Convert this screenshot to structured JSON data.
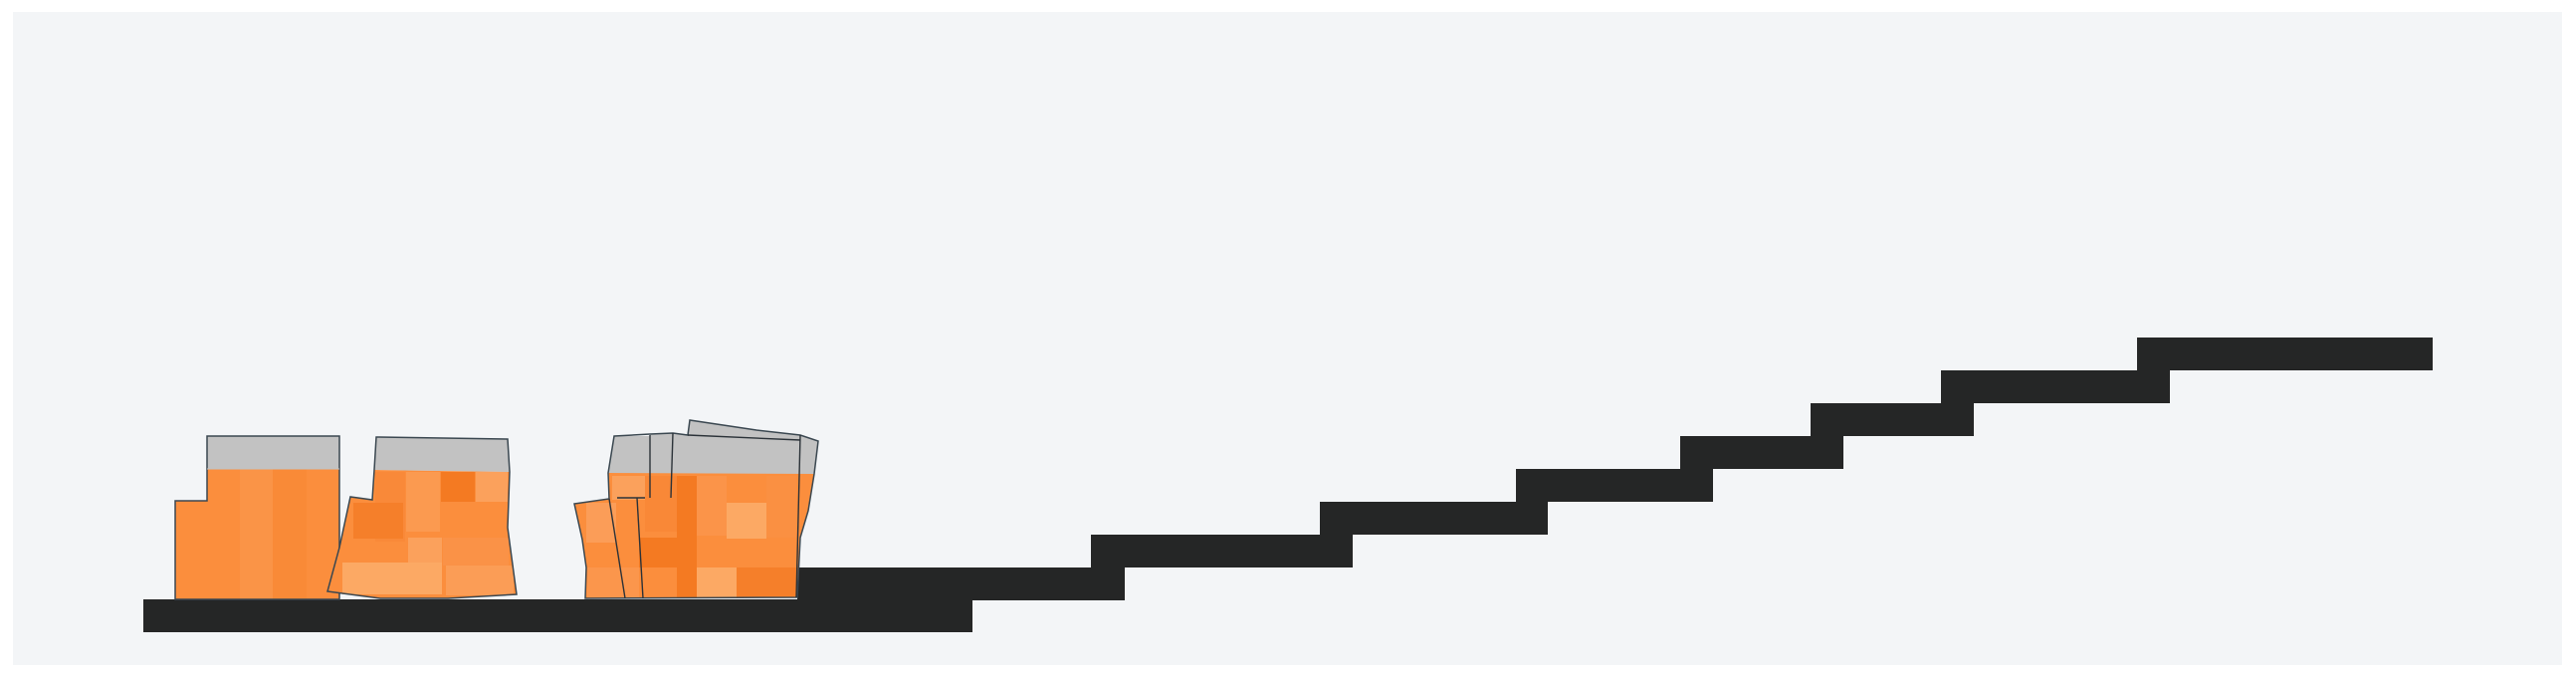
{
  "colors": {
    "canvas_background": "#f3f5f7",
    "page_background": "#ffffff",
    "terrain": "#252626",
    "robot_cap": "#c2c2c2",
    "robot_body": "#fb8e3d",
    "robot_body_light": "#fba15c",
    "robot_body_dark": "#f47a22",
    "robot_outline": "#3a4750"
  },
  "scene": {
    "terrain": "staircase",
    "robots": [
      "robot-1",
      "robot-2",
      "robot-3"
    ]
  }
}
